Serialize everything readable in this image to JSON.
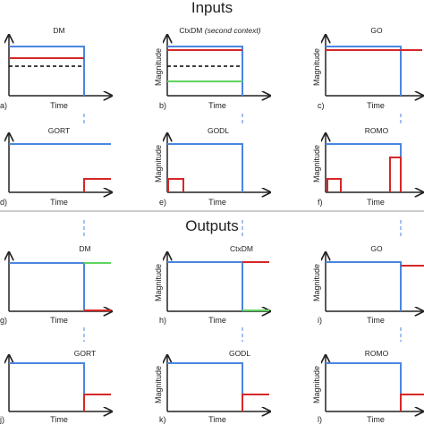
{
  "sections": {
    "inputs": "Inputs",
    "outputs": "Outputs"
  },
  "axis": {
    "x_label": "Time",
    "y_label": "Magnitude"
  },
  "colors": {
    "blue": "#4a86e0",
    "red": "#d62728",
    "green": "#5fd35f",
    "black": "#000000",
    "dash_guide": "#4a86e0"
  },
  "panels": [
    {
      "letter": "a)",
      "title": "DM",
      "show_ylabel": false
    },
    {
      "letter": "b)",
      "title": "CtxDM",
      "title_italic": "(second context)",
      "show_ylabel": true
    },
    {
      "letter": "c)",
      "title": "GO",
      "show_ylabel": true
    },
    {
      "letter": "d)",
      "title": "GORT",
      "show_ylabel": false
    },
    {
      "letter": "e)",
      "title": "GODL",
      "show_ylabel": true
    },
    {
      "letter": "f)",
      "title": "ROMO",
      "show_ylabel": true
    },
    {
      "letter": "g)",
      "title": "DM",
      "show_ylabel": false
    },
    {
      "letter": "h)",
      "title": "CtxDM",
      "show_ylabel": true
    },
    {
      "letter": "i)",
      "title": "GO",
      "show_ylabel": true
    },
    {
      "letter": "j)",
      "title": "GORT",
      "show_ylabel": false
    },
    {
      "letter": "k)",
      "title": "GODL",
      "show_ylabel": true
    },
    {
      "letter": "l)",
      "title": "ROMO",
      "show_ylabel": true
    }
  ]
}
